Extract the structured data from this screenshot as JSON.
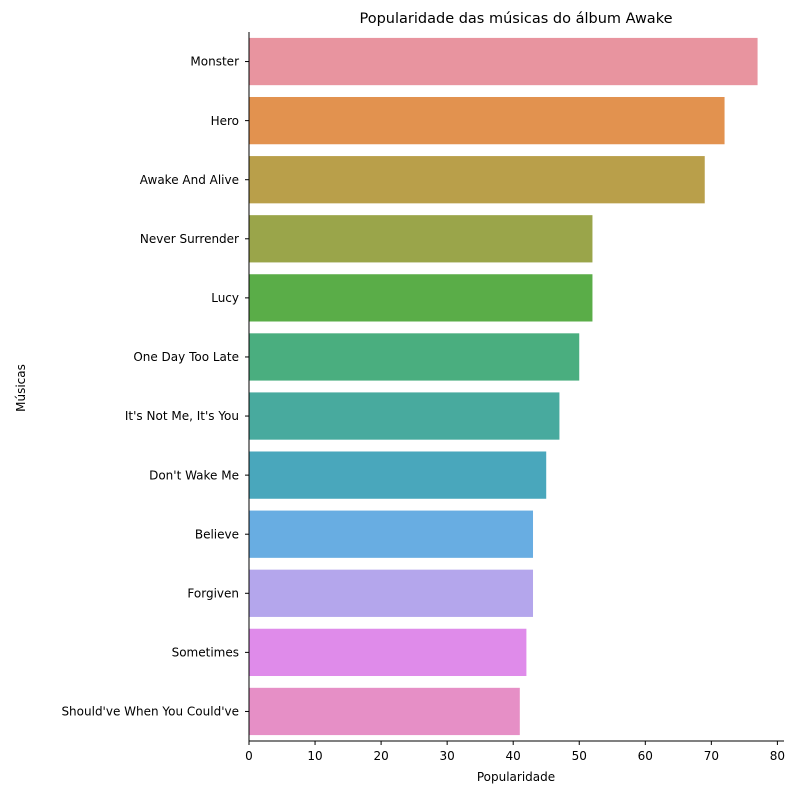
{
  "chart_data": {
    "type": "bar",
    "orientation": "horizontal",
    "title": "Popularidade das músicas do álbum Awake",
    "xlabel": "Popularidade",
    "ylabel": "Músicas",
    "xlim": [
      0,
      81
    ],
    "xticks": [
      0,
      10,
      20,
      30,
      40,
      50,
      60,
      70,
      80
    ],
    "grid": false,
    "categories": [
      "Monster",
      "Hero",
      "Awake And Alive",
      "Never Surrender",
      "Lucy",
      "One Day Too Late",
      "It's Not Me, It's You",
      "Don't Wake Me",
      "Believe",
      "Forgiven",
      "Sometimes",
      "Should've When You Could've"
    ],
    "values": [
      77,
      72,
      69,
      52,
      52,
      50,
      47,
      45,
      43,
      43,
      42,
      41
    ],
    "colors": [
      "#e8949f",
      "#e2924f",
      "#b99f4a",
      "#9aa54a",
      "#5aad48",
      "#4aae7f",
      "#48aa9e",
      "#49a7bc",
      "#68ade2",
      "#b4a6ec",
      "#df8bea",
      "#e68fc6"
    ]
  }
}
